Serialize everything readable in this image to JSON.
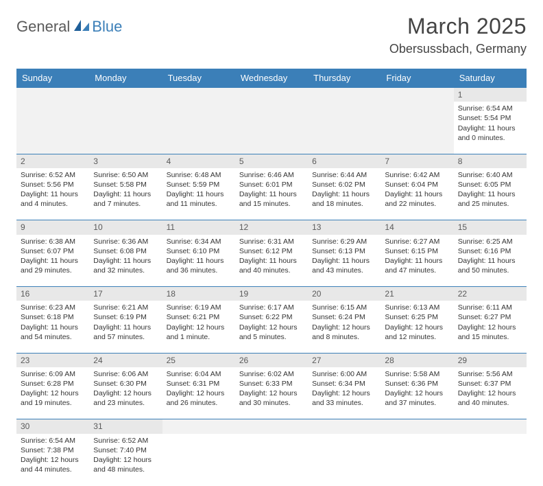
{
  "logo": {
    "part1": "General",
    "part2": "Blue"
  },
  "title": "March 2025",
  "location": "Obersussbach, Germany",
  "dayHeaders": [
    "Sunday",
    "Monday",
    "Tuesday",
    "Wednesday",
    "Thursday",
    "Friday",
    "Saturday"
  ],
  "colors": {
    "headerBg": "#3b7fb8",
    "headerText": "#ffffff",
    "dayNumBg": "#e8e8e8",
    "blankBg": "#f2f2f2",
    "bodyText": "#333333",
    "titleText": "#444444"
  },
  "weeks": [
    [
      null,
      null,
      null,
      null,
      null,
      null,
      {
        "n": "1",
        "sr": "Sunrise: 6:54 AM",
        "ss": "Sunset: 5:54 PM",
        "d1": "Daylight: 11 hours",
        "d2": "and 0 minutes."
      }
    ],
    [
      {
        "n": "2",
        "sr": "Sunrise: 6:52 AM",
        "ss": "Sunset: 5:56 PM",
        "d1": "Daylight: 11 hours",
        "d2": "and 4 minutes."
      },
      {
        "n": "3",
        "sr": "Sunrise: 6:50 AM",
        "ss": "Sunset: 5:58 PM",
        "d1": "Daylight: 11 hours",
        "d2": "and 7 minutes."
      },
      {
        "n": "4",
        "sr": "Sunrise: 6:48 AM",
        "ss": "Sunset: 5:59 PM",
        "d1": "Daylight: 11 hours",
        "d2": "and 11 minutes."
      },
      {
        "n": "5",
        "sr": "Sunrise: 6:46 AM",
        "ss": "Sunset: 6:01 PM",
        "d1": "Daylight: 11 hours",
        "d2": "and 15 minutes."
      },
      {
        "n": "6",
        "sr": "Sunrise: 6:44 AM",
        "ss": "Sunset: 6:02 PM",
        "d1": "Daylight: 11 hours",
        "d2": "and 18 minutes."
      },
      {
        "n": "7",
        "sr": "Sunrise: 6:42 AM",
        "ss": "Sunset: 6:04 PM",
        "d1": "Daylight: 11 hours",
        "d2": "and 22 minutes."
      },
      {
        "n": "8",
        "sr": "Sunrise: 6:40 AM",
        "ss": "Sunset: 6:05 PM",
        "d1": "Daylight: 11 hours",
        "d2": "and 25 minutes."
      }
    ],
    [
      {
        "n": "9",
        "sr": "Sunrise: 6:38 AM",
        "ss": "Sunset: 6:07 PM",
        "d1": "Daylight: 11 hours",
        "d2": "and 29 minutes."
      },
      {
        "n": "10",
        "sr": "Sunrise: 6:36 AM",
        "ss": "Sunset: 6:08 PM",
        "d1": "Daylight: 11 hours",
        "d2": "and 32 minutes."
      },
      {
        "n": "11",
        "sr": "Sunrise: 6:34 AM",
        "ss": "Sunset: 6:10 PM",
        "d1": "Daylight: 11 hours",
        "d2": "and 36 minutes."
      },
      {
        "n": "12",
        "sr": "Sunrise: 6:31 AM",
        "ss": "Sunset: 6:12 PM",
        "d1": "Daylight: 11 hours",
        "d2": "and 40 minutes."
      },
      {
        "n": "13",
        "sr": "Sunrise: 6:29 AM",
        "ss": "Sunset: 6:13 PM",
        "d1": "Daylight: 11 hours",
        "d2": "and 43 minutes."
      },
      {
        "n": "14",
        "sr": "Sunrise: 6:27 AM",
        "ss": "Sunset: 6:15 PM",
        "d1": "Daylight: 11 hours",
        "d2": "and 47 minutes."
      },
      {
        "n": "15",
        "sr": "Sunrise: 6:25 AM",
        "ss": "Sunset: 6:16 PM",
        "d1": "Daylight: 11 hours",
        "d2": "and 50 minutes."
      }
    ],
    [
      {
        "n": "16",
        "sr": "Sunrise: 6:23 AM",
        "ss": "Sunset: 6:18 PM",
        "d1": "Daylight: 11 hours",
        "d2": "and 54 minutes."
      },
      {
        "n": "17",
        "sr": "Sunrise: 6:21 AM",
        "ss": "Sunset: 6:19 PM",
        "d1": "Daylight: 11 hours",
        "d2": "and 57 minutes."
      },
      {
        "n": "18",
        "sr": "Sunrise: 6:19 AM",
        "ss": "Sunset: 6:21 PM",
        "d1": "Daylight: 12 hours",
        "d2": "and 1 minute."
      },
      {
        "n": "19",
        "sr": "Sunrise: 6:17 AM",
        "ss": "Sunset: 6:22 PM",
        "d1": "Daylight: 12 hours",
        "d2": "and 5 minutes."
      },
      {
        "n": "20",
        "sr": "Sunrise: 6:15 AM",
        "ss": "Sunset: 6:24 PM",
        "d1": "Daylight: 12 hours",
        "d2": "and 8 minutes."
      },
      {
        "n": "21",
        "sr": "Sunrise: 6:13 AM",
        "ss": "Sunset: 6:25 PM",
        "d1": "Daylight: 12 hours",
        "d2": "and 12 minutes."
      },
      {
        "n": "22",
        "sr": "Sunrise: 6:11 AM",
        "ss": "Sunset: 6:27 PM",
        "d1": "Daylight: 12 hours",
        "d2": "and 15 minutes."
      }
    ],
    [
      {
        "n": "23",
        "sr": "Sunrise: 6:09 AM",
        "ss": "Sunset: 6:28 PM",
        "d1": "Daylight: 12 hours",
        "d2": "and 19 minutes."
      },
      {
        "n": "24",
        "sr": "Sunrise: 6:06 AM",
        "ss": "Sunset: 6:30 PM",
        "d1": "Daylight: 12 hours",
        "d2": "and 23 minutes."
      },
      {
        "n": "25",
        "sr": "Sunrise: 6:04 AM",
        "ss": "Sunset: 6:31 PM",
        "d1": "Daylight: 12 hours",
        "d2": "and 26 minutes."
      },
      {
        "n": "26",
        "sr": "Sunrise: 6:02 AM",
        "ss": "Sunset: 6:33 PM",
        "d1": "Daylight: 12 hours",
        "d2": "and 30 minutes."
      },
      {
        "n": "27",
        "sr": "Sunrise: 6:00 AM",
        "ss": "Sunset: 6:34 PM",
        "d1": "Daylight: 12 hours",
        "d2": "and 33 minutes."
      },
      {
        "n": "28",
        "sr": "Sunrise: 5:58 AM",
        "ss": "Sunset: 6:36 PM",
        "d1": "Daylight: 12 hours",
        "d2": "and 37 minutes."
      },
      {
        "n": "29",
        "sr": "Sunrise: 5:56 AM",
        "ss": "Sunset: 6:37 PM",
        "d1": "Daylight: 12 hours",
        "d2": "and 40 minutes."
      }
    ],
    [
      {
        "n": "30",
        "sr": "Sunrise: 6:54 AM",
        "ss": "Sunset: 7:38 PM",
        "d1": "Daylight: 12 hours",
        "d2": "and 44 minutes."
      },
      {
        "n": "31",
        "sr": "Sunrise: 6:52 AM",
        "ss": "Sunset: 7:40 PM",
        "d1": "Daylight: 12 hours",
        "d2": "and 48 minutes."
      },
      null,
      null,
      null,
      null,
      null
    ]
  ]
}
